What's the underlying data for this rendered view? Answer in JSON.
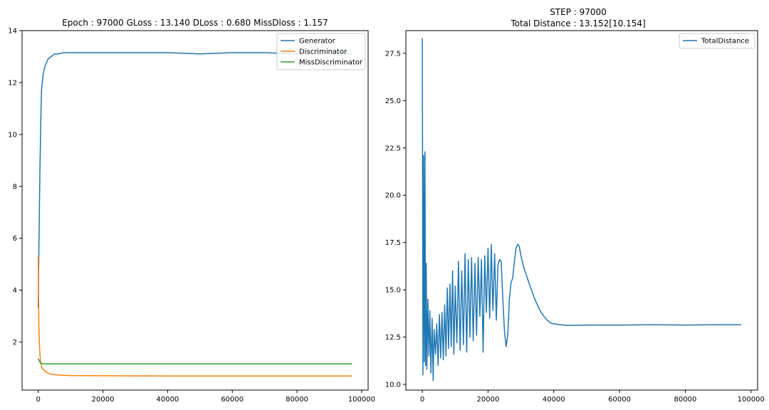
{
  "chart_data": [
    {
      "type": "line",
      "title": "Epoch : 97000 GLoss : 13.140 DLoss : 0.680 MissDloss : 1.157",
      "xlabel": "",
      "ylabel": "",
      "xlim": [
        -5000,
        102000
      ],
      "ylim": [
        0.15,
        14
      ],
      "xticks": [
        0,
        20000,
        40000,
        60000,
        80000,
        100000
      ],
      "xtick_labels": [
        "0",
        "20000",
        "40000",
        "60000",
        "80000",
        "100000"
      ],
      "yticks": [
        2,
        4,
        6,
        8,
        10,
        12,
        14
      ],
      "ytick_labels": [
        "2",
        "4",
        "6",
        "8",
        "10",
        "12",
        "14"
      ],
      "grid": false,
      "legend": "top-right",
      "series": [
        {
          "name": "Generator",
          "color": "#1f77b4",
          "x": [
            0,
            200,
            500,
            800,
            1000,
            1500,
            2000,
            3000,
            4000,
            5000,
            6000,
            8000,
            10000,
            15000,
            20000,
            30000,
            40000,
            50000,
            60000,
            70000,
            80000,
            90000,
            97000
          ],
          "y": [
            3.3,
            5.6,
            8.5,
            10.5,
            11.7,
            12.3,
            12.6,
            12.9,
            13.0,
            13.1,
            13.1,
            13.15,
            13.15,
            13.15,
            13.15,
            13.15,
            13.15,
            13.1,
            13.15,
            13.15,
            13.1,
            13.1,
            13.1
          ]
        },
        {
          "name": "Discriminator",
          "color": "#ff7f0e",
          "x": [
            0,
            200,
            400,
            600,
            800,
            1000,
            1500,
            2000,
            3000,
            4000,
            6000,
            10000,
            20000,
            40000,
            60000,
            80000,
            97000
          ],
          "y": [
            5.3,
            2.6,
            1.8,
            1.4,
            1.2,
            1.05,
            0.95,
            0.88,
            0.8,
            0.76,
            0.73,
            0.71,
            0.7,
            0.69,
            0.69,
            0.69,
            0.69
          ]
        },
        {
          "name": "MissDiscriminator",
          "color": "#2ca02c",
          "x": [
            0,
            500,
            1000,
            2000,
            5000,
            20000,
            40000,
            60000,
            80000,
            97000
          ],
          "y": [
            1.36,
            1.22,
            1.17,
            1.16,
            1.16,
            1.16,
            1.16,
            1.16,
            1.16,
            1.16
          ]
        }
      ]
    },
    {
      "type": "line",
      "title": "STEP : 97000\nTotal Distance : 13.152[10.154]",
      "title_lines": [
        "STEP : 97000",
        "Total Distance : 13.152[10.154]"
      ],
      "xlabel": "",
      "ylabel": "",
      "xlim": [
        -5000,
        102000
      ],
      "ylim": [
        9.7,
        28.7
      ],
      "xticks": [
        0,
        20000,
        40000,
        60000,
        80000,
        100000
      ],
      "xtick_labels": [
        "0",
        "20000",
        "40000",
        "60000",
        "80000",
        "100000"
      ],
      "yticks": [
        10.0,
        12.5,
        15.0,
        17.5,
        20.0,
        22.5,
        25.0,
        27.5
      ],
      "ytick_labels": [
        "10.0",
        "12.5",
        "15.0",
        "17.5",
        "20.0",
        "22.5",
        "25.0",
        "27.5"
      ],
      "grid": false,
      "legend": "top-right",
      "series": [
        {
          "name": "TotalDistance",
          "color": "#1f77b4",
          "x": [
            0,
            200,
            400,
            600,
            800,
            1000,
            1200,
            1400,
            1700,
            2000,
            2300,
            2600,
            3000,
            3300,
            3600,
            4000,
            4400,
            4800,
            5200,
            5600,
            6000,
            6400,
            6800,
            7200,
            7600,
            8000,
            8400,
            8800,
            9200,
            9600,
            10000,
            10500,
            11000,
            11500,
            12000,
            12500,
            13000,
            13500,
            14000,
            14500,
            15000,
            15500,
            16000,
            16500,
            17000,
            17500,
            18000,
            18500,
            19000,
            19500,
            20000,
            20500,
            21000,
            21500,
            22000,
            22500,
            23000,
            23500,
            24000,
            24500,
            25000,
            25500,
            26000,
            26500,
            27000,
            27500,
            28000,
            28500,
            29000,
            29500,
            30000,
            31000,
            32000,
            33000,
            34000,
            35000,
            36000,
            37000,
            38000,
            39000,
            40000,
            42000,
            44000,
            46000,
            50000,
            60000,
            70000,
            80000,
            90000,
            97000
          ],
          "y": [
            28.3,
            10.5,
            22.1,
            11.2,
            22.3,
            11.0,
            16.4,
            10.8,
            14.5,
            11.5,
            13.9,
            10.6,
            13.5,
            10.2,
            12.9,
            11.6,
            13.2,
            11.0,
            13.7,
            11.4,
            13.8,
            11.3,
            14.2,
            11.5,
            15.1,
            11.9,
            15.3,
            12.0,
            16.0,
            11.6,
            15.2,
            12.2,
            16.5,
            11.8,
            16.0,
            12.1,
            16.9,
            11.7,
            16.6,
            12.5,
            16.7,
            12.3,
            16.4,
            12.6,
            16.7,
            13.6,
            16.6,
            11.7,
            16.8,
            13.8,
            17.2,
            13.5,
            17.4,
            13.9,
            16.9,
            13.4,
            16.3,
            16.6,
            16.5,
            14.5,
            12.8,
            12.0,
            12.6,
            14.5,
            15.4,
            15.6,
            16.5,
            17.2,
            17.4,
            17.3,
            16.8,
            16.1,
            15.6,
            15.1,
            14.6,
            14.2,
            13.85,
            13.6,
            13.4,
            13.25,
            13.2,
            13.15,
            13.12,
            13.12,
            13.13,
            13.14,
            13.15,
            13.14,
            13.15,
            13.15
          ]
        }
      ]
    }
  ]
}
